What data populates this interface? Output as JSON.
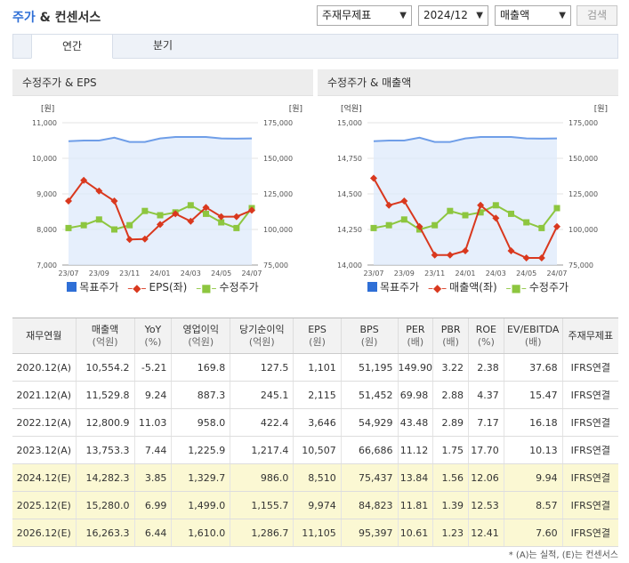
{
  "header": {
    "title_part1": "주가",
    "title_amp": " & ",
    "title_part2": "컨센서스",
    "select_report": "주재무제표",
    "select_period": "2024/12",
    "select_item": "매출액",
    "search_label": "검색"
  },
  "tabs": [
    "연간",
    "분기"
  ],
  "chart_left": {
    "title": "수정주가 & EPS",
    "left_unit": "[원]",
    "right_unit": "[원]",
    "left_ticks": [
      "11,000",
      "10,000",
      "9,000",
      "8,000",
      "7,000"
    ],
    "right_ticks": [
      "175,000",
      "150,000",
      "125,000",
      "100,000",
      "75,000"
    ],
    "x_labels": [
      "23/07",
      "23/09",
      "23/11",
      "24/01",
      "24/03",
      "24/05",
      "24/07"
    ],
    "legend": [
      "목표주가",
      "EPS(좌)",
      "수정주가"
    ]
  },
  "chart_right": {
    "title": "수정주가 & 매출액",
    "left_unit": "[억원]",
    "right_unit": "[원]",
    "left_ticks": [
      "15,000",
      "14,750",
      "14,500",
      "14,250",
      "14,000"
    ],
    "right_ticks": [
      "175,000",
      "150,000",
      "125,000",
      "100,000",
      "75,000"
    ],
    "x_labels": [
      "23/07",
      "23/09",
      "23/11",
      "24/01",
      "24/03",
      "24/05",
      "24/07"
    ],
    "legend": [
      "목표주가",
      "매출액(좌)",
      "수정주가"
    ]
  },
  "chart_data": [
    {
      "type": "line",
      "title": "수정주가 & EPS",
      "x": [
        "23/07",
        "23/08",
        "23/09",
        "23/10",
        "23/11",
        "23/12",
        "24/01",
        "24/02",
        "24/03",
        "24/04",
        "24/05",
        "24/06",
        "24/07"
      ],
      "left_axis": {
        "unit": "원",
        "ylim": [
          7000,
          11000
        ]
      },
      "right_axis": {
        "unit": "원",
        "ylim": [
          75000,
          175000
        ]
      },
      "series": [
        {
          "name": "목표주가",
          "axis": "right",
          "color": "#6f9ee8",
          "values": [
            162000,
            162500,
            162500,
            164500,
            161500,
            161500,
            164000,
            165000,
            165000,
            165000,
            164000,
            163800,
            164000
          ]
        },
        {
          "name": "EPS(좌)",
          "axis": "left",
          "color": "#d9381e",
          "values": [
            8800,
            9380,
            9080,
            8800,
            7720,
            7730,
            8140,
            8440,
            8230,
            8620,
            8360,
            8360,
            8540
          ]
        },
        {
          "name": "수정주가",
          "axis": "right",
          "color": "#8dc63f",
          "values": [
            101000,
            103000,
            107000,
            100000,
            103000,
            113000,
            110000,
            112000,
            117000,
            111000,
            105000,
            101000,
            115000
          ]
        }
      ]
    },
    {
      "type": "line",
      "title": "수정주가 & 매출액",
      "x": [
        "23/07",
        "23/08",
        "23/09",
        "23/10",
        "23/11",
        "23/12",
        "24/01",
        "24/02",
        "24/03",
        "24/04",
        "24/05",
        "24/06",
        "24/07"
      ],
      "left_axis": {
        "unit": "억원",
        "ylim": [
          14000,
          15000
        ]
      },
      "right_axis": {
        "unit": "원",
        "ylim": [
          75000,
          175000
        ]
      },
      "series": [
        {
          "name": "목표주가",
          "axis": "right",
          "color": "#6f9ee8",
          "values": [
            162000,
            162500,
            162500,
            164500,
            161500,
            161500,
            164000,
            165000,
            165000,
            165000,
            164000,
            163800,
            164000
          ]
        },
        {
          "name": "매출액(좌)",
          "axis": "left",
          "color": "#d9381e",
          "values": [
            14610,
            14420,
            14450,
            14270,
            14070,
            14070,
            14100,
            14420,
            14330,
            14100,
            14050,
            14050,
            14270
          ]
        },
        {
          "name": "수정주가",
          "axis": "right",
          "color": "#8dc63f",
          "values": [
            101000,
            103000,
            107000,
            100000,
            103000,
            113000,
            110000,
            112000,
            117000,
            111000,
            105000,
            101000,
            115000
          ]
        }
      ]
    }
  ],
  "table": {
    "headers": [
      {
        "label": "재무연월",
        "unit": ""
      },
      {
        "label": "매출액",
        "unit": "(억원)"
      },
      {
        "label": "YoY",
        "unit": "(%)"
      },
      {
        "label": "영업이익",
        "unit": "(억원)"
      },
      {
        "label": "당기순이익",
        "unit": "(억원)"
      },
      {
        "label": "EPS",
        "unit": "(원)"
      },
      {
        "label": "BPS",
        "unit": "(원)"
      },
      {
        "label": "PER",
        "unit": "(배)"
      },
      {
        "label": "PBR",
        "unit": "(배)"
      },
      {
        "label": "ROE",
        "unit": "(%)"
      },
      {
        "label": "EV/EBITDA",
        "unit": "(배)"
      },
      {
        "label": "주재무제표",
        "unit": ""
      }
    ],
    "rows": [
      {
        "estimate": false,
        "cells": [
          "2020.12(A)",
          "10,554.2",
          "-5.21",
          "169.8",
          "127.5",
          "1,101",
          "51,195",
          "149.90",
          "3.22",
          "2.38",
          "37.68",
          "IFRS연결"
        ]
      },
      {
        "estimate": false,
        "cells": [
          "2021.12(A)",
          "11,529.8",
          "9.24",
          "887.3",
          "245.1",
          "2,115",
          "51,452",
          "69.98",
          "2.88",
          "4.37",
          "15.47",
          "IFRS연결"
        ]
      },
      {
        "estimate": false,
        "cells": [
          "2022.12(A)",
          "12,800.9",
          "11.03",
          "958.0",
          "422.4",
          "3,646",
          "54,929",
          "43.48",
          "2.89",
          "7.17",
          "16.18",
          "IFRS연결"
        ]
      },
      {
        "estimate": false,
        "cells": [
          "2023.12(A)",
          "13,753.3",
          "7.44",
          "1,225.9",
          "1,217.4",
          "10,507",
          "66,686",
          "11.12",
          "1.75",
          "17.70",
          "10.13",
          "IFRS연결"
        ]
      },
      {
        "estimate": true,
        "cells": [
          "2024.12(E)",
          "14,282.3",
          "3.85",
          "1,329.7",
          "986.0",
          "8,510",
          "75,437",
          "13.84",
          "1.56",
          "12.06",
          "9.94",
          "IFRS연결"
        ]
      },
      {
        "estimate": true,
        "cells": [
          "2025.12(E)",
          "15,280.0",
          "6.99",
          "1,499.0",
          "1,155.7",
          "9,974",
          "84,823",
          "11.81",
          "1.39",
          "12.53",
          "8.57",
          "IFRS연결"
        ]
      },
      {
        "estimate": true,
        "cells": [
          "2026.12(E)",
          "16,263.3",
          "6.44",
          "1,610.0",
          "1,286.7",
          "11,105",
          "95,397",
          "10.61",
          "1.23",
          "12.41",
          "7.60",
          "IFRS연결"
        ]
      }
    ]
  },
  "footnote": "* (A)는 실적, (E)는 컨센서스"
}
